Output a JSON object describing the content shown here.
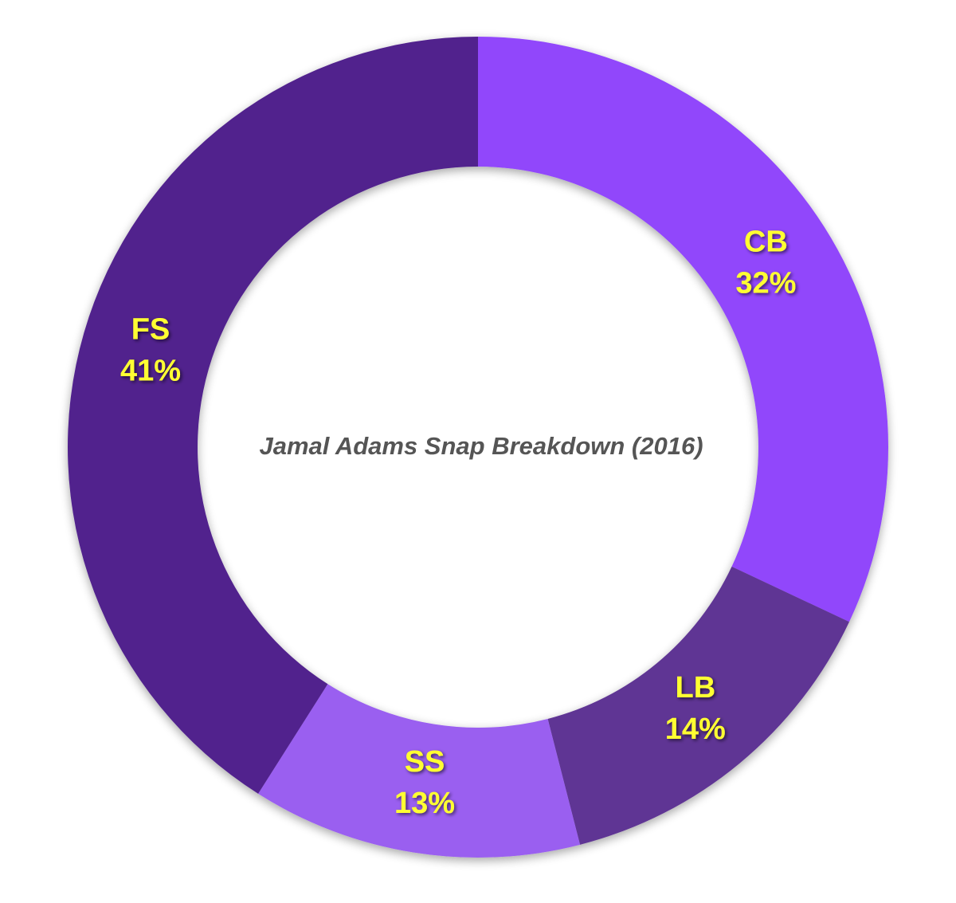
{
  "chart_data": {
    "type": "pie",
    "title": "Jamal Adams Snap Breakdown (2016)",
    "slices": [
      {
        "label": "CB",
        "value": 32,
        "value_text": "32%",
        "color": "#9146fb"
      },
      {
        "label": "LB",
        "value": 14,
        "value_text": "14%",
        "color": "#5f3494"
      },
      {
        "label": "SS",
        "value": 13,
        "value_text": "13%",
        "color": "#9a5ef0"
      },
      {
        "label": "FS",
        "value": 41,
        "value_text": "41%",
        "color": "#51218d"
      }
    ],
    "label_color": "#ffff33",
    "title_color": "#555555",
    "background_color": "#ffffff",
    "legend": "none",
    "grid": false
  }
}
